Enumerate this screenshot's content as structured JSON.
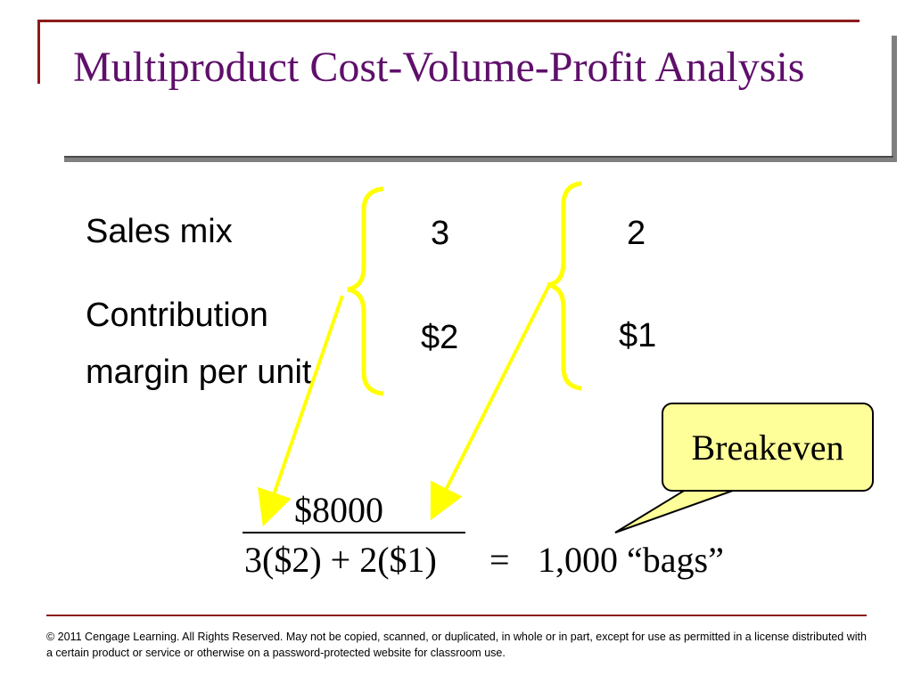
{
  "slide": {
    "title": "Multiproduct Cost-Volume-Profit Analysis",
    "rows": {
      "sales_mix_label": "Sales mix",
      "cm_label_line1": "Contribution",
      "cm_label_line2": "margin per unit"
    },
    "product_a": {
      "sales_mix": "3",
      "contribution_margin": "$2"
    },
    "product_b": {
      "sales_mix": "2",
      "contribution_margin": "$1"
    },
    "formula": {
      "numerator": "$8000",
      "denominator": "3($2) + 2($1)",
      "equals": "=",
      "result": "1,000 “bags”"
    },
    "callout": "Breakeven",
    "footer": "© 2011 Cengage Learning. All Rights Reserved. May not be copied, scanned, or duplicated, in whole or in part, except for use as permitted in a license distributed with a certain product or service or otherwise on a password-protected website for classroom use."
  },
  "colors": {
    "title": "#5f0f6b",
    "frame": "#8b1a1a",
    "bracket": "#ffff00",
    "callout_fill": "#ffff99"
  }
}
